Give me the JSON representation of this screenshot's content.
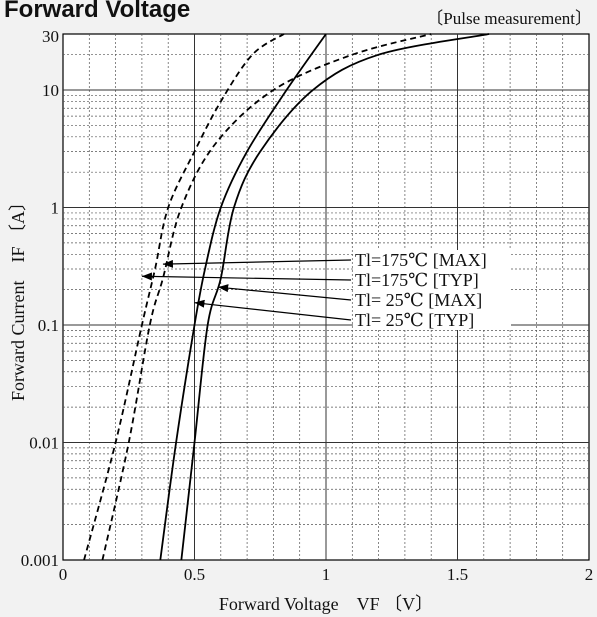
{
  "chart_data": {
    "type": "line",
    "title": "Forward Voltage",
    "subtitle": "〔Pulse measurement〕",
    "xlabel": "Forward Voltage　VF 〔V〕",
    "ylabel": "Forward Current　IF 〔A〕",
    "xlim": [
      0,
      2
    ],
    "ylim": [
      0.001,
      30
    ],
    "yscale": "log",
    "grid": true,
    "x_tick_labels": [
      "0",
      "0.5",
      "1",
      "1.5",
      "2"
    ],
    "y_tick_labels": [
      "0.001",
      "0.01",
      "0.1",
      "1",
      "10",
      "30"
    ],
    "series": [
      {
        "name": "Tl=175℃ [MAX]",
        "style": "dashed",
        "points": [
          [
            0.08,
            0.001
          ],
          [
            0.2,
            0.01
          ],
          [
            0.3,
            0.1
          ],
          [
            0.35,
            0.3
          ],
          [
            0.4,
            1
          ],
          [
            0.5,
            3
          ],
          [
            0.6,
            8
          ],
          [
            0.72,
            20
          ],
          [
            0.84,
            30
          ]
        ]
      },
      {
        "name": "Tl=175℃ [TYP]",
        "style": "dashed",
        "points": [
          [
            0.15,
            0.001
          ],
          [
            0.25,
            0.01
          ],
          [
            0.33,
            0.1
          ],
          [
            0.38,
            0.25
          ],
          [
            0.45,
            1
          ],
          [
            0.58,
            3.5
          ],
          [
            0.8,
            10
          ],
          [
            1.1,
            20
          ],
          [
            1.4,
            30
          ]
        ]
      },
      {
        "name": "Tl= 25℃ [MAX]",
        "style": "solid",
        "points": [
          [
            0.37,
            0.001
          ],
          [
            0.43,
            0.01
          ],
          [
            0.5,
            0.1
          ],
          [
            0.54,
            0.3
          ],
          [
            0.6,
            1
          ],
          [
            0.7,
            3
          ],
          [
            0.85,
            10
          ],
          [
            1.0,
            30
          ]
        ]
      },
      {
        "name": "Tl= 25℃ [TYP]",
        "style": "solid",
        "points": [
          [
            0.45,
            0.001
          ],
          [
            0.5,
            0.01
          ],
          [
            0.55,
            0.1
          ],
          [
            0.6,
            0.25
          ],
          [
            0.65,
            1
          ],
          [
            0.75,
            3
          ],
          [
            0.95,
            10
          ],
          [
            1.2,
            20
          ],
          [
            1.62,
            30
          ]
        ]
      }
    ],
    "annotations": [
      {
        "label": "Tl=175℃ [MAX]",
        "target_series": 0
      },
      {
        "label": "Tl=175℃ [TYP]",
        "target_series": 1
      },
      {
        "label": "Tl= 25℃ [MAX]",
        "target_series": 2
      },
      {
        "label": "Tl= 25℃ [TYP]",
        "target_series": 3
      }
    ],
    "colors": {
      "line": "#000000",
      "grid_major": "#333333",
      "grid_minor": "#555555",
      "background": "#ffffff",
      "page": "#f2f2f2"
    }
  }
}
